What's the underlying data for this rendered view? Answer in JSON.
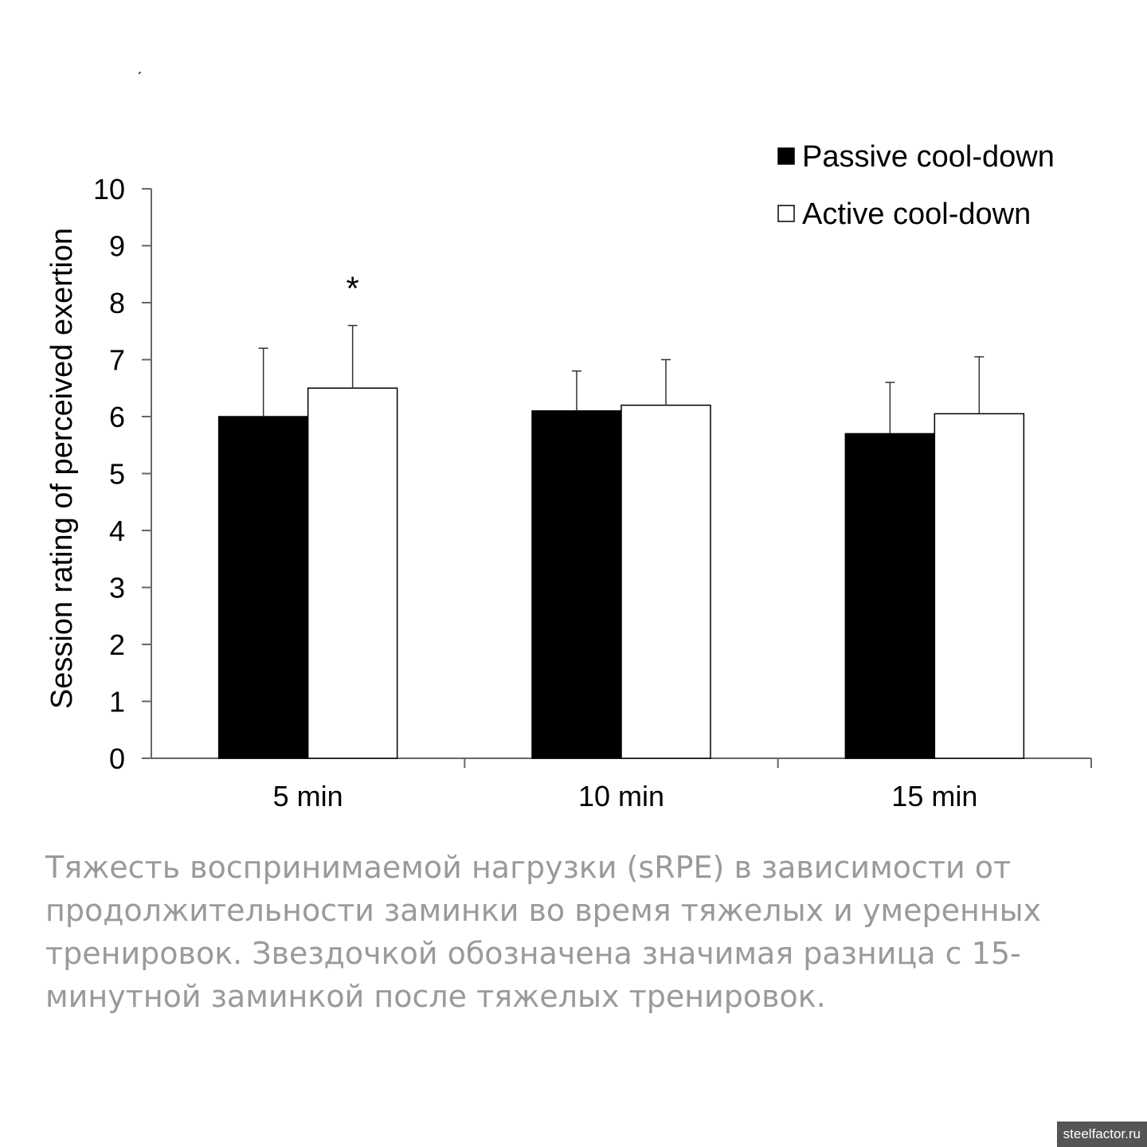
{
  "chart_data": {
    "type": "bar",
    "categories": [
      "5 min",
      "10 min",
      "15 min"
    ],
    "ylabel": "Session rating of perceived exertion",
    "xlabel": "",
    "ylim": [
      0,
      10
    ],
    "yticks": [
      "0",
      "1",
      "2",
      "3",
      "4",
      "5",
      "6",
      "7",
      "8",
      "9",
      "10"
    ],
    "legend_position": "top-right",
    "grid": false,
    "series": [
      {
        "name": "Passive cool-down",
        "color": "#000000",
        "values": [
          6.0,
          6.1,
          5.7
        ],
        "error": [
          1.2,
          0.7,
          0.9
        ]
      },
      {
        "name": "Active cool-down",
        "color": "#ffffff",
        "values": [
          6.5,
          6.2,
          6.05
        ],
        "error": [
          1.1,
          0.8,
          1.0
        ]
      }
    ],
    "annotations": [
      {
        "text": "*",
        "category": "5 min",
        "series": "Active cool-down"
      }
    ]
  },
  "caption": {
    "lines": [
      "Тяжесть воспринимаемой нагрузки (sRPE) в зависимости от",
      "продолжительности заминки во время тяжелых и умеренных",
      "тренировок. Звездочкой обозначена значимая разница с 15-",
      "минутной заминкой после тяжелых тренировок."
    ]
  },
  "watermark": "steelfactor.ru",
  "stray_mark": "ˊ"
}
